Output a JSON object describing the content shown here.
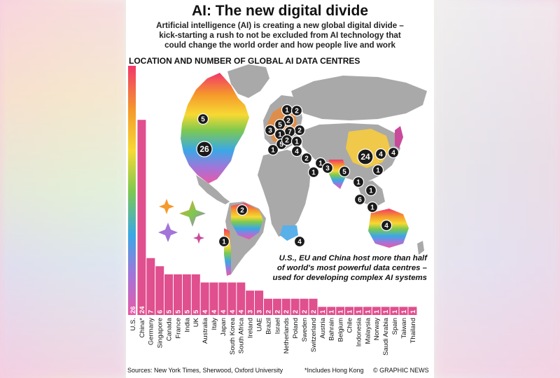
{
  "header": {
    "title": "AI: The new digital divide",
    "subtitle_lines": [
      "Artificial intelligence (AI) is creating a new global digital divide –",
      "kick-starting a rush to not be excluded from AI technology that",
      "could change the world order and how people live and work"
    ],
    "section_title": "LOCATION AND NUMBER OF GLOBAL AI DATA CENTRES"
  },
  "annotation_lines": [
    "U.S., EU and China host more than half",
    "of world's most powerful data centres –",
    "used for developing complex AI systems"
  ],
  "footer": {
    "sources": "Sources: New York Times, Sherwood, Oxford University",
    "includes_note": "*Includes Hong Kong",
    "copyright": "© GRAPHIC NEWS"
  },
  "map_markers": [
    {
      "country": "Canada",
      "value": 5
    },
    {
      "country": "U.S.",
      "value": 26
    },
    {
      "country": "Brazil",
      "value": 2
    },
    {
      "country": "Chile",
      "value": 1
    },
    {
      "country": "Norway",
      "value": 1
    },
    {
      "country": "Sweden",
      "value": 2
    },
    {
      "country": "Netherlands",
      "value": 2
    },
    {
      "country": "Ireland",
      "value": 3
    },
    {
      "country": "UK",
      "value": 5
    },
    {
      "country": "Poland",
      "value": 2
    },
    {
      "country": "Germany",
      "value": 7
    },
    {
      "country": "Belgium",
      "value": 1
    },
    {
      "country": "France",
      "value": 5
    },
    {
      "country": "Switzerland",
      "value": 2
    },
    {
      "country": "Austria",
      "value": 1
    },
    {
      "country": "Spain",
      "value": 1
    },
    {
      "country": "Italy",
      "value": 4
    },
    {
      "country": "Israel",
      "value": 2
    },
    {
      "country": "Saudi Arabia",
      "value": 1
    },
    {
      "country": "Bahrain",
      "value": 1
    },
    {
      "country": "UAE",
      "value": 3
    },
    {
      "country": "India",
      "value": 5
    },
    {
      "country": "China",
      "value": 24
    },
    {
      "country": "South Korea",
      "value": 4
    },
    {
      "country": "Japan",
      "value": 4
    },
    {
      "country": "Taiwan",
      "value": 1
    },
    {
      "country": "Thailand",
      "value": 1
    },
    {
      "country": "Malaysia",
      "value": 1
    },
    {
      "country": "Singapore",
      "value": 6
    },
    {
      "country": "Indonesia",
      "value": 1
    },
    {
      "country": "Australia",
      "value": 4
    },
    {
      "country": "South Africa",
      "value": 4
    }
  ],
  "chart_data": {
    "type": "bar",
    "title": "LOCATION AND NUMBER OF GLOBAL AI DATA CENTRES",
    "categories": [
      "U.S.",
      "China*",
      "Germany",
      "Singapore",
      "Canada",
      "France",
      "India",
      "UK",
      "Australia",
      "Italy",
      "Japan",
      "South Korea",
      "South Africa",
      "Ireland",
      "UAE",
      "Brazil",
      "Israel",
      "Netherlands",
      "Poland",
      "Sweden",
      "Switzerland",
      "Austria",
      "Bahrain",
      "Belgium",
      "Chile",
      "Indonesia",
      "Malaysia",
      "Norway",
      "Saudi Arabia",
      "Spain",
      "Taiwan",
      "Thailand"
    ],
    "values": [
      26,
      24,
      7,
      6,
      5,
      5,
      5,
      5,
      4,
      4,
      4,
      4,
      4,
      3,
      3,
      2,
      2,
      2,
      2,
      2,
      2,
      1,
      1,
      1,
      1,
      1,
      1,
      1,
      1,
      1,
      1,
      1
    ],
    "ylim": [
      0,
      26
    ],
    "grid": false,
    "legend": "none",
    "colors": {
      "bar": "#e04f8e",
      "scale_top": "#f2376b",
      "scale_orange": "#f59a2b",
      "scale_yellow": "#f7d933",
      "scale_green": "#7fc94f",
      "scale_blue": "#3aa8e6",
      "scale_purple": "#a374d9",
      "scale_bottom": "#e85aa6",
      "land": "#a9a9a9",
      "marker": "#1a1a1a"
    }
  }
}
